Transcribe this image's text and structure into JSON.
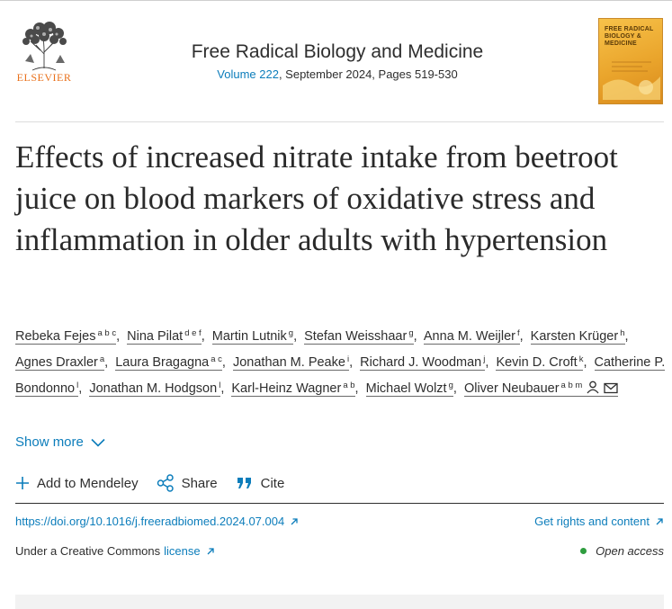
{
  "publisher": {
    "name": "ELSEVIER",
    "logo_icon": "elsevier-tree-logo"
  },
  "journal": {
    "title": "Free Radical Biology and Medicine",
    "volume_link": "Volume 222",
    "issue_rest": ", September 2024, Pages 519-530",
    "cover_title": "FREE RADICAL BIOLOGY & MEDICINE"
  },
  "article": {
    "title": "Effects of increased nitrate intake from beetroot juice on blood markers of oxidative stress and inflammation in older adults with hypertension"
  },
  "authors": [
    {
      "name": "Rebeka Fejes",
      "aff": "a b c"
    },
    {
      "name": "Nina Pilat",
      "aff": "d e f"
    },
    {
      "name": "Martin Lutnik",
      "aff": "g"
    },
    {
      "name": "Stefan Weisshaar",
      "aff": "g"
    },
    {
      "name": "Anna M. Weijler",
      "aff": "f"
    },
    {
      "name": "Karsten Krüger",
      "aff": "h"
    },
    {
      "name": "Agnes Draxler",
      "aff": "a"
    },
    {
      "name": "Laura Bragagna",
      "aff": "a c"
    },
    {
      "name": "Jonathan M. Peake",
      "aff": "i"
    },
    {
      "name": "Richard J. Woodman",
      "aff": "j"
    },
    {
      "name": "Kevin D. Croft",
      "aff": "k"
    },
    {
      "name": "Catherine P. Bondonno",
      "aff": "l"
    },
    {
      "name": "Jonathan M. Hodgson",
      "aff": "l"
    },
    {
      "name": "Karl-Heinz Wagner",
      "aff": "a b"
    },
    {
      "name": "Michael Wolzt",
      "aff": "g"
    },
    {
      "name": "Oliver Neubauer",
      "aff": "a b m"
    }
  ],
  "show_more": "Show more",
  "actions": {
    "mendeley": "Add to Mendeley",
    "share": "Share",
    "cite": "Cite"
  },
  "links": {
    "doi": "https://doi.org/10.1016/j.freeradbiomed.2024.07.004",
    "rights": "Get rights and content",
    "license_prefix": "Under a Creative Commons",
    "license": "license",
    "open_access": "Open access"
  },
  "colors": {
    "link": "#0c7dbb",
    "publisher_orange": "#e9711c",
    "open_access_dot": "#2e9d3f"
  }
}
